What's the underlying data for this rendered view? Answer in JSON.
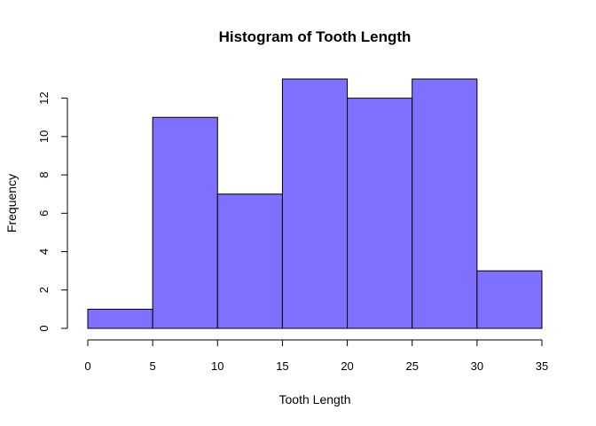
{
  "chart_data": {
    "type": "bar",
    "title": "Histogram of Tooth Length",
    "xlabel": "Tooth Length",
    "ylabel": "Frequency",
    "bins": [
      {
        "start": 0,
        "end": 5,
        "count": 1
      },
      {
        "start": 5,
        "end": 10,
        "count": 11
      },
      {
        "start": 10,
        "end": 15,
        "count": 7
      },
      {
        "start": 15,
        "end": 20,
        "count": 13
      },
      {
        "start": 20,
        "end": 25,
        "count": 12
      },
      {
        "start": 25,
        "end": 30,
        "count": 13
      },
      {
        "start": 30,
        "end": 35,
        "count": 3
      }
    ],
    "xlim": [
      0,
      35
    ],
    "ylim": [
      0,
      13
    ],
    "x_ticks": [
      "0",
      "5",
      "10",
      "15",
      "20",
      "25",
      "30",
      "35"
    ],
    "y_ticks": [
      "0",
      "2",
      "4",
      "6",
      "8",
      "10",
      "12"
    ],
    "bar_color": "#8070FF",
    "grid": false
  }
}
